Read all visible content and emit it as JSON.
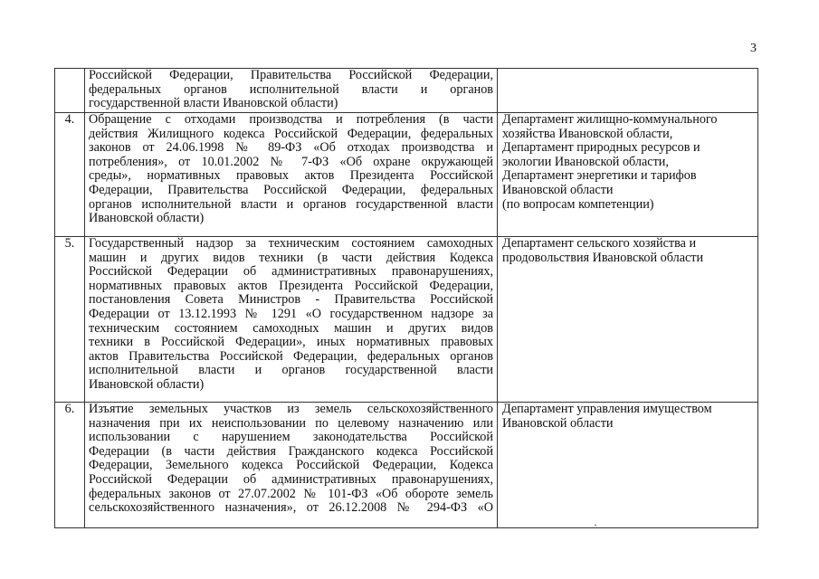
{
  "page_number": "3",
  "rows": [
    {
      "num": "",
      "desc": [
        "Российской Федерации, Правительства Российской Федерации,",
        "федеральных органов исполнительной власти и органов",
        "государственной власти Ивановской области)"
      ],
      "dept": []
    },
    {
      "num": "4.",
      "desc": [
        "Обращение с отходами производства и потребления (в части",
        "действия Жилищного кодекса Российской Федерации, федеральных",
        "законов от 24.06.1998 № 89-ФЗ «Об отходах производства и",
        "потребления», от 10.01.2002 № 7-ФЗ «Об охране окружающей",
        "среды», нормативных правовых актов Президента Российской",
        "Федерации, Правительства Российской Федерации, федеральных",
        "органов исполнительной власти и органов государственной власти",
        "Ивановской области)"
      ],
      "dept": [
        "Департамент жилищно-коммунального",
        "хозяйства Ивановской области,",
        "Департамент природных ресурсов и",
        "экологии Ивановской области,",
        "Департамент энергетики и тарифов",
        "Ивановской области",
        "(по вопросам компетенции)"
      ]
    },
    {
      "num": "5.",
      "desc": [
        "Государственный надзор за техническим состоянием самоходных",
        "машин и других видов техники (в части действия Кодекса",
        "Российской Федерации об административных правонарушениях,",
        "нормативных правовых актов Президента Российской Федерации,",
        "постановления Совета Министров - Правительства Российской",
        "Федерации от 13.12.1993 № 1291 «О государственном надзоре за",
        "техническим состоянием самоходных машин и других видов",
        "техники в Российской Федерации», иных нормативных правовых",
        "актов Правительства Российской Федерации, федеральных органов",
        "исполнительной власти и органов государственной власти",
        "Ивановской области)"
      ],
      "dept": [
        "Департамент сельского хозяйства и",
        "продовольствия Ивановской области"
      ]
    },
    {
      "num": "6.",
      "desc": [
        "Изъятие земельных участков из земель сельскохозяйственного",
        "назначения при их неиспользовании по целевому назначению или",
        "использовании с нарушением законодательства Российской",
        "Федерации (в части действия Гражданского кодекса Российской",
        "Федерации, Земельного кодекса Российской Федерации, Кодекса",
        "Российской Федерации об административных правонарушениях,",
        "федеральных законов от 27.07.2002 № 101-ФЗ «Об обороте земель",
        "сельскохозяйственного назначения», от 26.12.2008 № 294-ФЗ «О"
      ],
      "dept": [
        "Департамент управления имуществом",
        "Ивановской области"
      ],
      "continues": true
    }
  ]
}
